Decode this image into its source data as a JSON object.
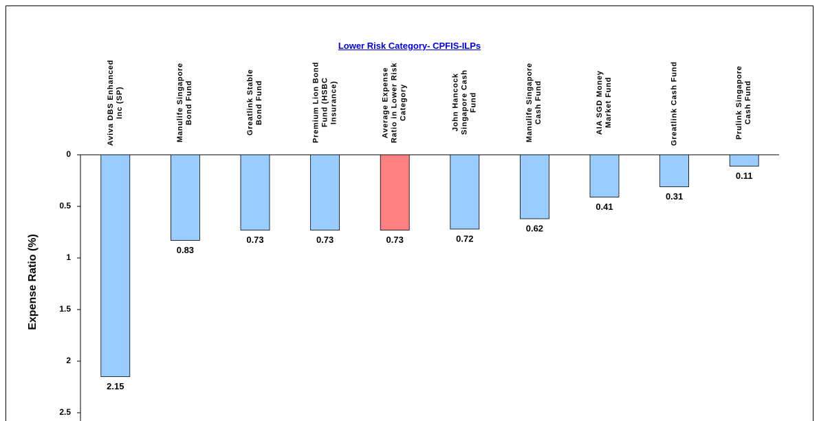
{
  "chart_data": {
    "type": "bar",
    "title": "Lower Risk Category- CPFIS-ILPs",
    "y_label": "Expense Ratio (%)",
    "categories": [
      "Aviva DBS Enhanced Inc (SP)",
      "Manulife Singapore Bond Fund",
      "Greatlink Stable Bond Fund",
      "Premium Lion Bond Fund (HSBC Insurance)",
      "Average Expense Ratio in Lower Risk Category",
      "John Hancock Singapore Cash Fund",
      "Manulife Singapore Cash Fund",
      "AIA SGD Money Market Fund",
      "Greatlink Cash Fund",
      "Prulink Singapore Cash Fund"
    ],
    "values": [
      2.15,
      0.83,
      0.73,
      0.73,
      0.73,
      0.72,
      0.62,
      0.41,
      0.31,
      0.11
    ],
    "colors": [
      "#99ccff",
      "#99ccff",
      "#99ccff",
      "#99ccff",
      "#ff8080",
      "#99ccff",
      "#99ccff",
      "#99ccff",
      "#99ccff",
      "#99ccff"
    ],
    "ylim": [
      0,
      2.5
    ],
    "yticks": [
      0,
      0.5,
      1,
      1.5,
      2,
      2.5
    ],
    "y_inverted": true,
    "grid": false
  }
}
